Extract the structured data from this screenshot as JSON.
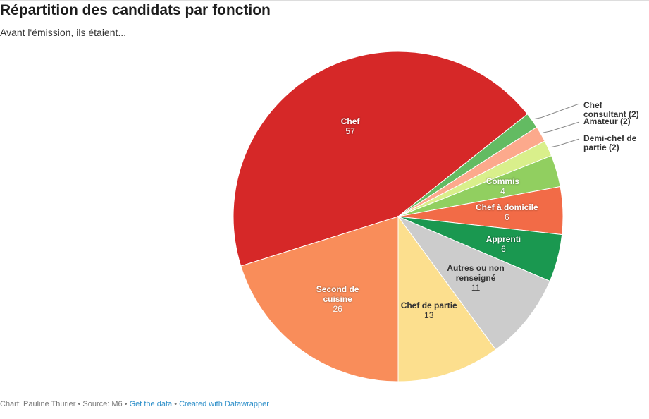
{
  "title": "Répartition des candidats par fonction",
  "subtitle": "Avant l'émission, ils étaient...",
  "footer": {
    "chart": "Chart: Pauline Thurier",
    "sep": " • ",
    "source": "Source: M6",
    "get_data": "Get the data",
    "created": "Created with Datawrapper"
  },
  "chart_data": {
    "type": "pie",
    "slices": [
      {
        "name": "Chef",
        "value": 57,
        "color": "#d62828"
      },
      {
        "name": "Chef consultant",
        "value": 2,
        "color": "#63bb62"
      },
      {
        "name": "Amateur",
        "value": 2,
        "color": "#fca98c"
      },
      {
        "name": "Demi-chef de partie",
        "value": 2,
        "color": "#d9ef8b"
      },
      {
        "name": "Commis",
        "value": 4,
        "color": "#91cf60"
      },
      {
        "name": "Chef à domicile",
        "value": 6,
        "color": "#f26b47"
      },
      {
        "name": "Apprenti",
        "value": 6,
        "color": "#1a9850"
      },
      {
        "name": "Autres ou non renseigné",
        "value": 11,
        "color": "#cccccc"
      },
      {
        "name": "Chef de partie",
        "value": 13,
        "color": "#fcdf8e"
      },
      {
        "name": "Second de cuisine",
        "value": 26,
        "color": "#f98d5a"
      }
    ]
  }
}
